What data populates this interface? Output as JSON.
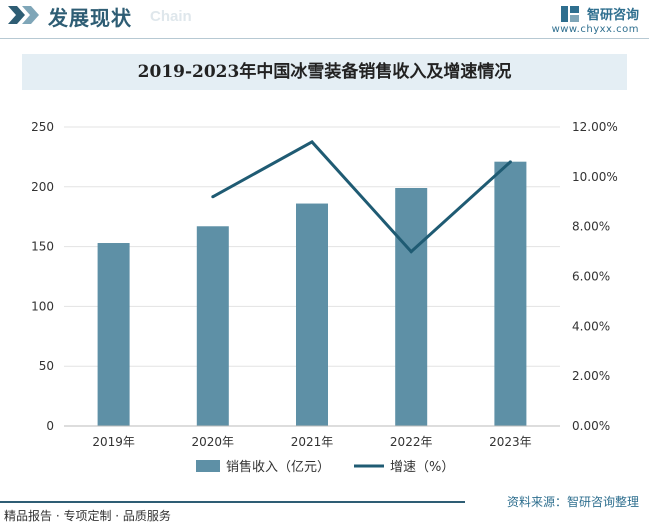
{
  "header": {
    "title": "发展现状",
    "subtitle": "Chain",
    "brand_name": "智研咨询",
    "brand_url": "www.chyxx.com"
  },
  "chart_data": {
    "type": "bar+line",
    "title": "2019-2023年中国冰雪装备销售收入及增速情况",
    "categories": [
      "2019年",
      "2020年",
      "2021年",
      "2022年",
      "2023年"
    ],
    "series": [
      {
        "name": "销售收入（亿元）",
        "type": "bar",
        "axis": "left",
        "values": [
          153,
          167,
          186,
          199,
          221
        ]
      },
      {
        "name": "增速（%）",
        "type": "line",
        "axis": "right",
        "values": [
          null,
          9.2,
          11.4,
          7.0,
          10.6
        ]
      }
    ],
    "y_left": {
      "min": 0,
      "max": 250,
      "ticks": [
        "0",
        "50",
        "100",
        "150",
        "200",
        "250"
      ]
    },
    "y_right": {
      "min": 0,
      "max": 12,
      "ticks": [
        "0.00%",
        "2.00%",
        "4.00%",
        "6.00%",
        "8.00%",
        "10.00%",
        "12.00%"
      ]
    },
    "legend": [
      "销售收入（亿元）",
      "增速（%）"
    ],
    "legend_position": "bottom",
    "grid": true,
    "colors": {
      "bar": "#5e90a6",
      "line": "#1f5b73",
      "grid": "#e3e3e3"
    }
  },
  "footer": {
    "left": "精品报告 · 专项定制 · 品质服务",
    "right": "资料来源：智研咨询整理"
  }
}
